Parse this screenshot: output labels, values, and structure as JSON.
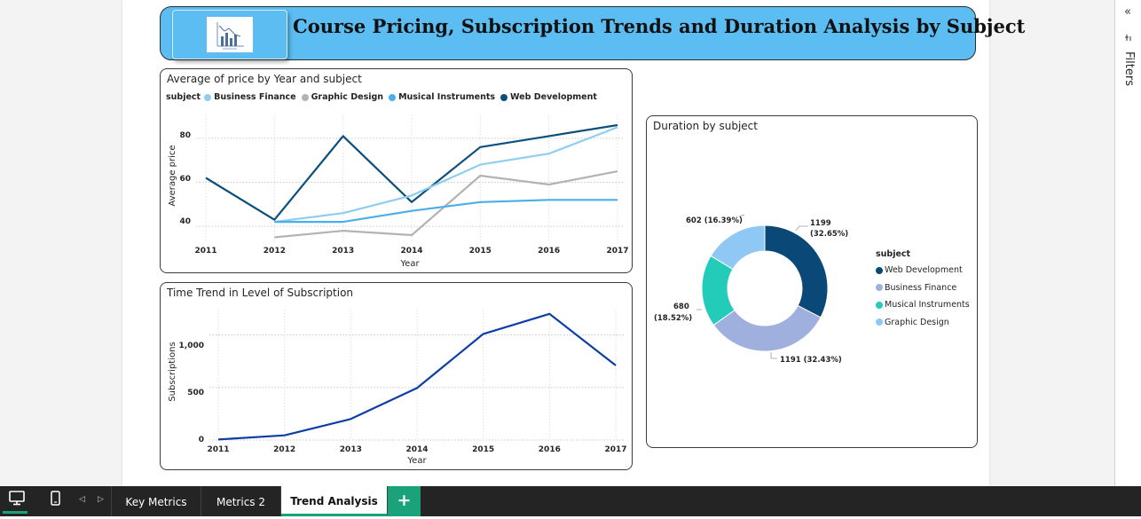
{
  "report": {
    "title": "Course Pricing, Subscription Trends and Duration Analysis by Subject",
    "logo_icon": "bar-chart-logo-icon"
  },
  "colors": {
    "web_development": "#0d4f7c",
    "business_finance": "#8fcdf0",
    "graphic_design": "#b3b3b3",
    "musical_instruments": "#4aaee8",
    "subscriptions_line": "#0d3ea8",
    "donut_web_development": "#0a4877",
    "donut_business_finance": "#9fb0df",
    "donut_musical_instruments": "#22ccb8",
    "donut_graphic_design": "#8fc8f5",
    "banner": "#5bbdf2",
    "accent_tab": "#1aa37a"
  },
  "price_chart": {
    "title": "Average of price by Year and subject",
    "legend_title": "subject",
    "legend_items": [
      "Business Finance",
      "Graphic Design",
      "Musical Instruments",
      "Web Development"
    ],
    "xlabel": "Year",
    "ylabel": "Average price",
    "yticks": [
      "40",
      "60",
      "80"
    ]
  },
  "subs_chart": {
    "title": "Time Trend in Level of Subscription",
    "xlabel": "Year",
    "ylabel": "Subscriptions",
    "yticks": [
      "0",
      "500",
      "1,000"
    ]
  },
  "donut_chart": {
    "title": "Duration by subject",
    "legend_title": "subject",
    "legend_items": [
      "Web Development",
      "Business Finance",
      "Musical Instruments",
      "Graphic Design"
    ],
    "labels": {
      "web_value": "1199",
      "web_pct": "(32.65%)",
      "bf": "1191 (32.43%)",
      "mi_value": "680",
      "mi_pct": "(18.52%)",
      "gd": "602 (16.39%)"
    }
  },
  "chart_data": [
    {
      "type": "line",
      "title": "Average of price by Year and subject",
      "xlabel": "Year",
      "ylabel": "Average price",
      "x": [
        "2011",
        "2012",
        "2013",
        "2014",
        "2015",
        "2016",
        "2017"
      ],
      "ylim": [
        34,
        88
      ],
      "grid": true,
      "legend": "top",
      "series": [
        {
          "name": "Web Development",
          "values": [
            62,
            43,
            81,
            51,
            76,
            81,
            86
          ]
        },
        {
          "name": "Business Finance",
          "values": [
            null,
            42,
            46,
            54,
            68,
            73,
            85
          ]
        },
        {
          "name": "Graphic Design",
          "values": [
            null,
            35,
            38,
            36,
            63,
            59,
            65
          ]
        },
        {
          "name": "Musical Instruments",
          "values": [
            null,
            42,
            42,
            47,
            51,
            52,
            52
          ]
        }
      ]
    },
    {
      "type": "line",
      "title": "Time Trend in Level of Subscription",
      "xlabel": "Year",
      "ylabel": "Subscriptions",
      "x": [
        "2011",
        "2012",
        "2013",
        "2014",
        "2015",
        "2016",
        "2017"
      ],
      "ylim": [
        0,
        1300
      ],
      "grid": true,
      "series": [
        {
          "values": [
            5,
            45,
            200,
            495,
            1010,
            1200,
            710
          ]
        }
      ]
    },
    {
      "type": "pie",
      "title": "Duration by subject",
      "legend": "right",
      "categories": [
        "Web Development",
        "Business Finance",
        "Musical Instruments",
        "Graphic Design"
      ],
      "values": [
        1199,
        1191,
        680,
        602
      ],
      "percentages": [
        32.65,
        32.43,
        18.52,
        16.39
      ]
    }
  ],
  "filters_pane": {
    "label": "Filters",
    "collapse_icon": "double-chevron-left-icon",
    "filter_icon": "filter-icon"
  },
  "tabs": [
    {
      "label": "Key Metrics",
      "active": false
    },
    {
      "label": "Metrics 2",
      "active": false
    },
    {
      "label": "Trend Analysis",
      "active": true
    }
  ],
  "bottom_bar": {
    "add_label": "+",
    "desktop_icon": "desktop-view-icon",
    "mobile_icon": "mobile-view-icon",
    "prev_icon": "prev-page-icon",
    "next_icon": "next-page-icon"
  }
}
